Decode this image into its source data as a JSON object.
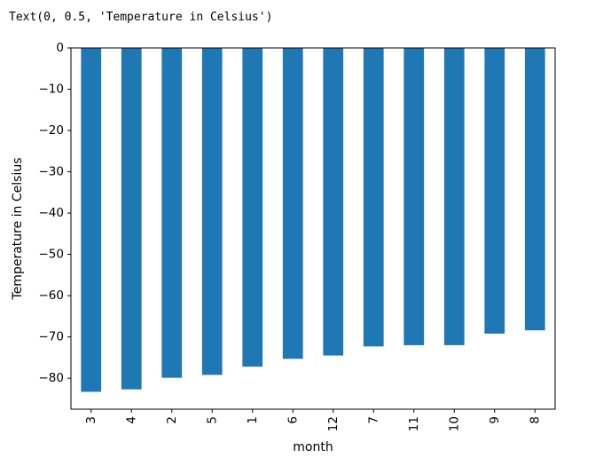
{
  "output_text": "Text(0, 0.5, 'Temperature in Celsius')",
  "chart_data": {
    "type": "bar",
    "categories": [
      "3",
      "4",
      "2",
      "5",
      "1",
      "6",
      "12",
      "7",
      "11",
      "10",
      "9",
      "8"
    ],
    "values": [
      -83.3,
      -82.7,
      -79.9,
      -79.2,
      -77.2,
      -75.3,
      -74.5,
      -72.3,
      -72.0,
      -72.0,
      -69.2,
      -68.4
    ],
    "xlabel": "month",
    "ylabel": "Temperature in Celsius",
    "ylim": [
      -87.5,
      0
    ],
    "yticks": [
      0,
      -10,
      -20,
      -30,
      -40,
      -50,
      -60,
      -70,
      -80
    ],
    "ytick_labels": [
      "0",
      "−10",
      "−20",
      "−30",
      "−40",
      "−50",
      "−60",
      "−70",
      "−80"
    ],
    "bar_color": "#1f77b4",
    "grid": false,
    "xtick_rotation": 90
  }
}
